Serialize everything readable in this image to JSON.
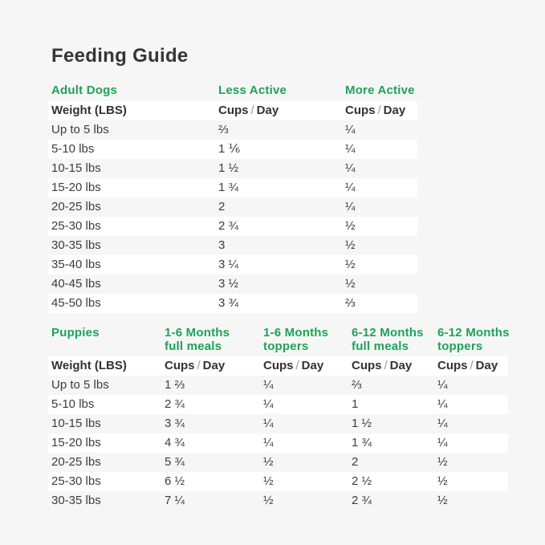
{
  "page": {
    "title": "Feeding Guide"
  },
  "units": {
    "cups": "Cups",
    "sep": "/",
    "day": "Day"
  },
  "colors": {
    "accent_green": "#1ea355",
    "page_background": "#f6f6f7",
    "stripe_white": "#ffffff",
    "heading_text": "#363636",
    "body_text": "#3c3c3c",
    "slash_gray": "#9b9b9b"
  },
  "adult": {
    "section_label": "Adult Dogs",
    "col_headers": [
      "Less Active",
      "More Active"
    ],
    "weight_header": "Weight (LBS)",
    "rows": [
      {
        "weight": "Up to 5 lbs",
        "less": "⅔",
        "more": "¼"
      },
      {
        "weight": "5-10 lbs",
        "less": "1 ⅙",
        "more": "¼"
      },
      {
        "weight": "10-15 lbs",
        "less": "1 ½",
        "more": "¼"
      },
      {
        "weight": "15-20 lbs",
        "less": "1 ¾",
        "more": "¼"
      },
      {
        "weight": "20-25 lbs",
        "less": "2",
        "more": "¼"
      },
      {
        "weight": "25-30 lbs",
        "less": "2 ¾",
        "more": "½"
      },
      {
        "weight": "30-35 lbs",
        "less": "3",
        "more": "½"
      },
      {
        "weight": "35-40 lbs",
        "less": "3 ¼",
        "more": "½"
      },
      {
        "weight": "40-45 lbs",
        "less": "3 ½",
        "more": "½"
      },
      {
        "weight": "45-50 lbs",
        "less": "3 ¾",
        "more": "⅔"
      }
    ]
  },
  "puppies": {
    "section_label": "Puppies",
    "col_headers": [
      {
        "line1": "1-6 Months",
        "line2": "full meals"
      },
      {
        "line1": "1-6 Months",
        "line2": "toppers"
      },
      {
        "line1": "6-12 Months",
        "line2": "full meals"
      },
      {
        "line1": "6-12 Months",
        "line2": "toppers"
      }
    ],
    "weight_header": "Weight (LBS)",
    "rows": [
      {
        "weight": "Up to 5 lbs",
        "m16": "1 ⅔",
        "t16": "¼",
        "m612": "⅔",
        "t612": "¼"
      },
      {
        "weight": "5-10 lbs",
        "m16": "2 ¾",
        "t16": "¼",
        "m612": "1",
        "t612": "¼"
      },
      {
        "weight": "10-15 lbs",
        "m16": "3 ¾",
        "t16": "¼",
        "m612": "1 ½",
        "t612": "¼"
      },
      {
        "weight": "15-20 lbs",
        "m16": "4 ¾",
        "t16": "¼",
        "m612": "1 ¾",
        "t612": "¼"
      },
      {
        "weight": "20-25 lbs",
        "m16": "5 ¾",
        "t16": "½",
        "m612": "2",
        "t612": "½"
      },
      {
        "weight": "25-30 lbs",
        "m16": "6 ½",
        "t16": "½",
        "m612": "2 ½",
        "t612": "½"
      },
      {
        "weight": "30-35 lbs",
        "m16": "7 ¼",
        "t16": "½",
        "m612": "2 ¾",
        "t612": "½"
      }
    ]
  }
}
